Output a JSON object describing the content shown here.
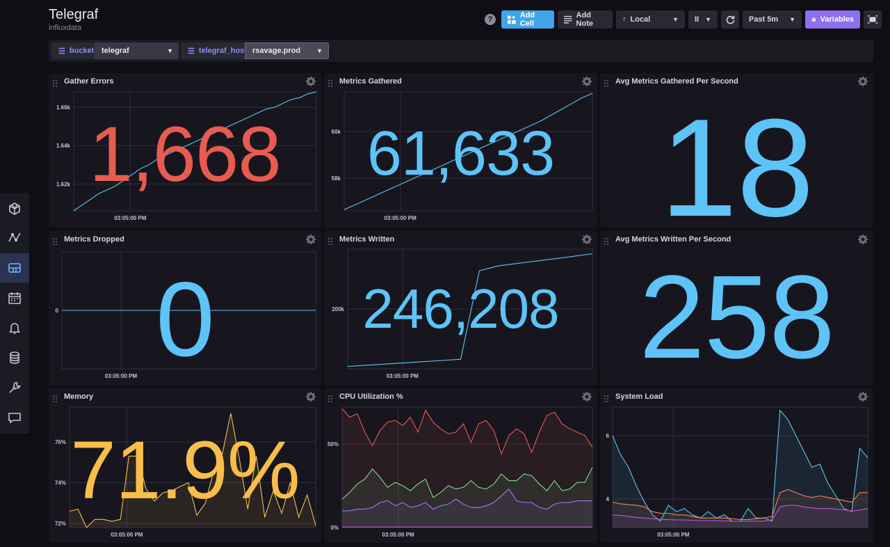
{
  "header": {
    "title": "Telegraf",
    "subtitle": "influxdata"
  },
  "toolbar": {
    "help_label": "?",
    "add_cell_label": "Add Cell",
    "add_note_label": "Add Note",
    "timezone_label": "Local",
    "pause_label": "II",
    "time_range_label": "Past 5m",
    "variables_label": "Variables"
  },
  "variables": [
    {
      "name": "bucket",
      "value": "telegraf"
    },
    {
      "name": "telegraf_host",
      "value": "rsavage.prod"
    }
  ],
  "sidebar": {
    "items": [
      "home-icon",
      "data-explorer-icon",
      "dashboards-icon",
      "tasks-icon",
      "alerts-icon",
      "load-data-icon",
      "settings-icon",
      "feedback-icon"
    ],
    "active": "dashboards-icon"
  },
  "colors": {
    "blue": "#5ec3f7",
    "red": "#e85b4f",
    "yellow": "#f8be4a",
    "green": "#7ee08c",
    "purple": "#9b7df6",
    "orange": "#f4874b",
    "magenta": "#c054e8"
  },
  "cells": [
    {
      "title": "Gather Errors",
      "value": "1,668",
      "value_color": "#e85b4f",
      "time_label": "03:05:00 PM"
    },
    {
      "title": "Metrics Gathered",
      "value": "61,633",
      "value_color": "#5ec3f7",
      "time_label": "03:05:00 PM"
    },
    {
      "title": "Avg Metrics Gathered Per Second",
      "value": "18",
      "value_color": "#5ec3f7"
    },
    {
      "title": "Metrics Dropped",
      "value": "0",
      "value_color": "#5ec3f7",
      "time_label": "03:05:00 PM"
    },
    {
      "title": "Metrics Written",
      "value": "246,208",
      "value_color": "#5ec3f7",
      "time_label": "03:05:00 PM"
    },
    {
      "title": "Avg Metrics Written Per Second",
      "value": "258",
      "value_color": "#5ec3f7"
    },
    {
      "title": "Memory",
      "value": "71.9%",
      "value_color": "#f8be4a",
      "time_label": "03:05:00 PM"
    },
    {
      "title": "CPU Utilization %",
      "time_label": "03:05:00 PM"
    },
    {
      "title": "System Load",
      "time_label": "03:05:00 PM"
    }
  ],
  "chart_data": [
    {
      "type": "line",
      "panel": "Gather Errors",
      "ylim": [
        1606,
        1668
      ],
      "yticks": [
        "1.66k",
        "1.64k",
        "1.62k"
      ],
      "ytick_values": [
        1660,
        1640,
        1620
      ],
      "x_tick": "03:05:00 PM",
      "series": [
        {
          "color": "#5ec3f7",
          "values": [
            1606,
            1609,
            1612,
            1615,
            1617,
            1619,
            1622,
            1625,
            1628,
            1630,
            1633,
            1635,
            1637,
            1639,
            1641,
            1643,
            1645,
            1647,
            1649,
            1651,
            1653,
            1655,
            1657,
            1659,
            1660,
            1662,
            1664,
            1665,
            1667,
            1668
          ]
        }
      ]
    },
    {
      "type": "line",
      "panel": "Metrics Gathered",
      "ylim": [
        56600,
        61700
      ],
      "yticks": [
        "60k",
        "58k"
      ],
      "ytick_values": [
        60000,
        58000
      ],
      "x_tick": "03:05:00 PM",
      "series": [
        {
          "color": "#5ec3f7",
          "values": [
            56650,
            56850,
            57050,
            57250,
            57450,
            57650,
            57850,
            58050,
            58250,
            58450,
            58650,
            58850,
            59050,
            59250,
            59450,
            59650,
            59850,
            60050,
            60250,
            60450,
            60700,
            60950,
            61200,
            61450,
            61633
          ]
        }
      ]
    },
    {
      "type": "line",
      "panel": "Metrics Dropped",
      "ylim": [
        -1,
        1
      ],
      "yticks": [
        "0"
      ],
      "ytick_values": [
        0
      ],
      "x_tick": "03:05:00 PM",
      "series": [
        {
          "color": "#5ec3f7",
          "values": [
            0,
            0
          ]
        }
      ]
    },
    {
      "type": "line",
      "panel": "Metrics Written",
      "ylim": [
        150000,
        250000
      ],
      "yticks": [
        "200k"
      ],
      "ytick_values": [
        200000
      ],
      "x_tick": "03:05:00 PM",
      "series": [
        {
          "color": "#5ec3f7",
          "values": [
            152000,
            153000,
            154000,
            155000,
            156000,
            157000,
            158000,
            232000,
            236000,
            238000,
            240000,
            242000,
            244000,
            246208
          ]
        }
      ]
    },
    {
      "type": "area",
      "panel": "Memory",
      "ylim": [
        71.8,
        77.7
      ],
      "yticks": [
        "76%",
        "74%",
        "72%"
      ],
      "ytick_values": [
        76,
        74,
        72
      ],
      "x_tick": "03:05:00 PM",
      "series": [
        {
          "color": "#f8be4a",
          "values": [
            72.6,
            72.7,
            71.8,
            72.2,
            72.2,
            72.1,
            72.2,
            75.3,
            75.3,
            73.7,
            73.1,
            73.5,
            73.6,
            73.8,
            74.0,
            72.4,
            73.0,
            74.6,
            75.4,
            77.4,
            75.2,
            72.7,
            75.3,
            72.3,
            73.6,
            72.5,
            74.0,
            72.3,
            73.4,
            71.9
          ]
        }
      ]
    },
    {
      "type": "area",
      "panel": "CPU Utilization %",
      "ylim": [
        0,
        72
      ],
      "yticks": [
        "50%",
        "0%"
      ],
      "ytick_values": [
        50,
        0
      ],
      "x_tick": "03:05:00 PM",
      "series": [
        {
          "color": "#e85b4f",
          "values": [
            71,
            66,
            68,
            57,
            49,
            58,
            63,
            64,
            61,
            66,
            57,
            70,
            63,
            59,
            56,
            57,
            62,
            51,
            62,
            64,
            58,
            44,
            55,
            59,
            56,
            45,
            57,
            67,
            69,
            62,
            59,
            57,
            55,
            48
          ]
        },
        {
          "color": "#7ee08c",
          "values": [
            17,
            21,
            26,
            29,
            35,
            30,
            24,
            27,
            25,
            22,
            26,
            29,
            18,
            21,
            25,
            23,
            24,
            28,
            24,
            23,
            26,
            32,
            28,
            28,
            32,
            31,
            26,
            22,
            28,
            22,
            23,
            27,
            27,
            36
          ]
        },
        {
          "color": "#9b7df6",
          "values": [
            10,
            10,
            11,
            11,
            12,
            15,
            16,
            13,
            15,
            12,
            13,
            15,
            11,
            13,
            14,
            17,
            14,
            12,
            12,
            13,
            15,
            19,
            23,
            16,
            15,
            15,
            12,
            11,
            14,
            15,
            15,
            16,
            16,
            16
          ]
        },
        {
          "color": "#c054e8",
          "values": [
            0.3,
            0.3,
            0.3,
            0.3,
            0.3,
            0.3,
            0.3,
            0.3,
            0.3,
            0.3,
            0.3,
            0.3,
            0.3,
            0.3,
            0.3,
            0.3,
            0.3,
            0.3,
            0.3,
            0.3,
            0.3,
            0.3,
            0.3,
            0.3,
            0.3,
            0.3,
            0.3,
            0.3,
            0.3,
            0.3,
            0.3,
            0.3,
            0.3,
            0.3
          ]
        }
      ]
    },
    {
      "type": "area",
      "panel": "System Load",
      "ylim": [
        3.1,
        6.9
      ],
      "yticks": [
        "6",
        "4"
      ],
      "ytick_values": [
        6,
        4
      ],
      "x_tick": "03:05:00 PM",
      "series": [
        {
          "color": "#5ec3f7",
          "values": [
            6.0,
            5.4,
            5.0,
            4.4,
            3.9,
            3.5,
            3.3,
            3.8,
            3.6,
            3.7,
            3.5,
            3.4,
            3.6,
            3.4,
            3.5,
            3.3,
            3.3,
            3.7,
            3.4,
            3.4,
            3.3,
            6.8,
            6.5,
            6.0,
            5.5,
            5.0,
            5.1,
            4.5,
            4.1,
            3.7,
            3.6,
            5.6,
            5.3
          ]
        },
        {
          "color": "#f4874b",
          "values": [
            3.9,
            3.85,
            3.82,
            3.8,
            3.75,
            3.6,
            3.55,
            3.55,
            3.5,
            3.5,
            3.45,
            3.4,
            3.4,
            3.4,
            3.4,
            3.38,
            3.35,
            3.35,
            3.38,
            3.4,
            3.45,
            4.2,
            4.3,
            4.2,
            4.1,
            4.05,
            4.1,
            4.05,
            4.0,
            3.95,
            3.9,
            4.2,
            4.2
          ]
        },
        {
          "color": "#c054e8",
          "values": [
            3.5,
            3.48,
            3.45,
            3.42,
            3.4,
            3.38,
            3.36,
            3.35,
            3.34,
            3.34,
            3.33,
            3.32,
            3.32,
            3.32,
            3.31,
            3.3,
            3.3,
            3.3,
            3.3,
            3.3,
            3.35,
            3.75,
            3.8,
            3.8,
            3.75,
            3.72,
            3.7,
            3.7,
            3.68,
            3.66,
            3.62,
            3.65,
            3.7
          ]
        }
      ]
    }
  ]
}
